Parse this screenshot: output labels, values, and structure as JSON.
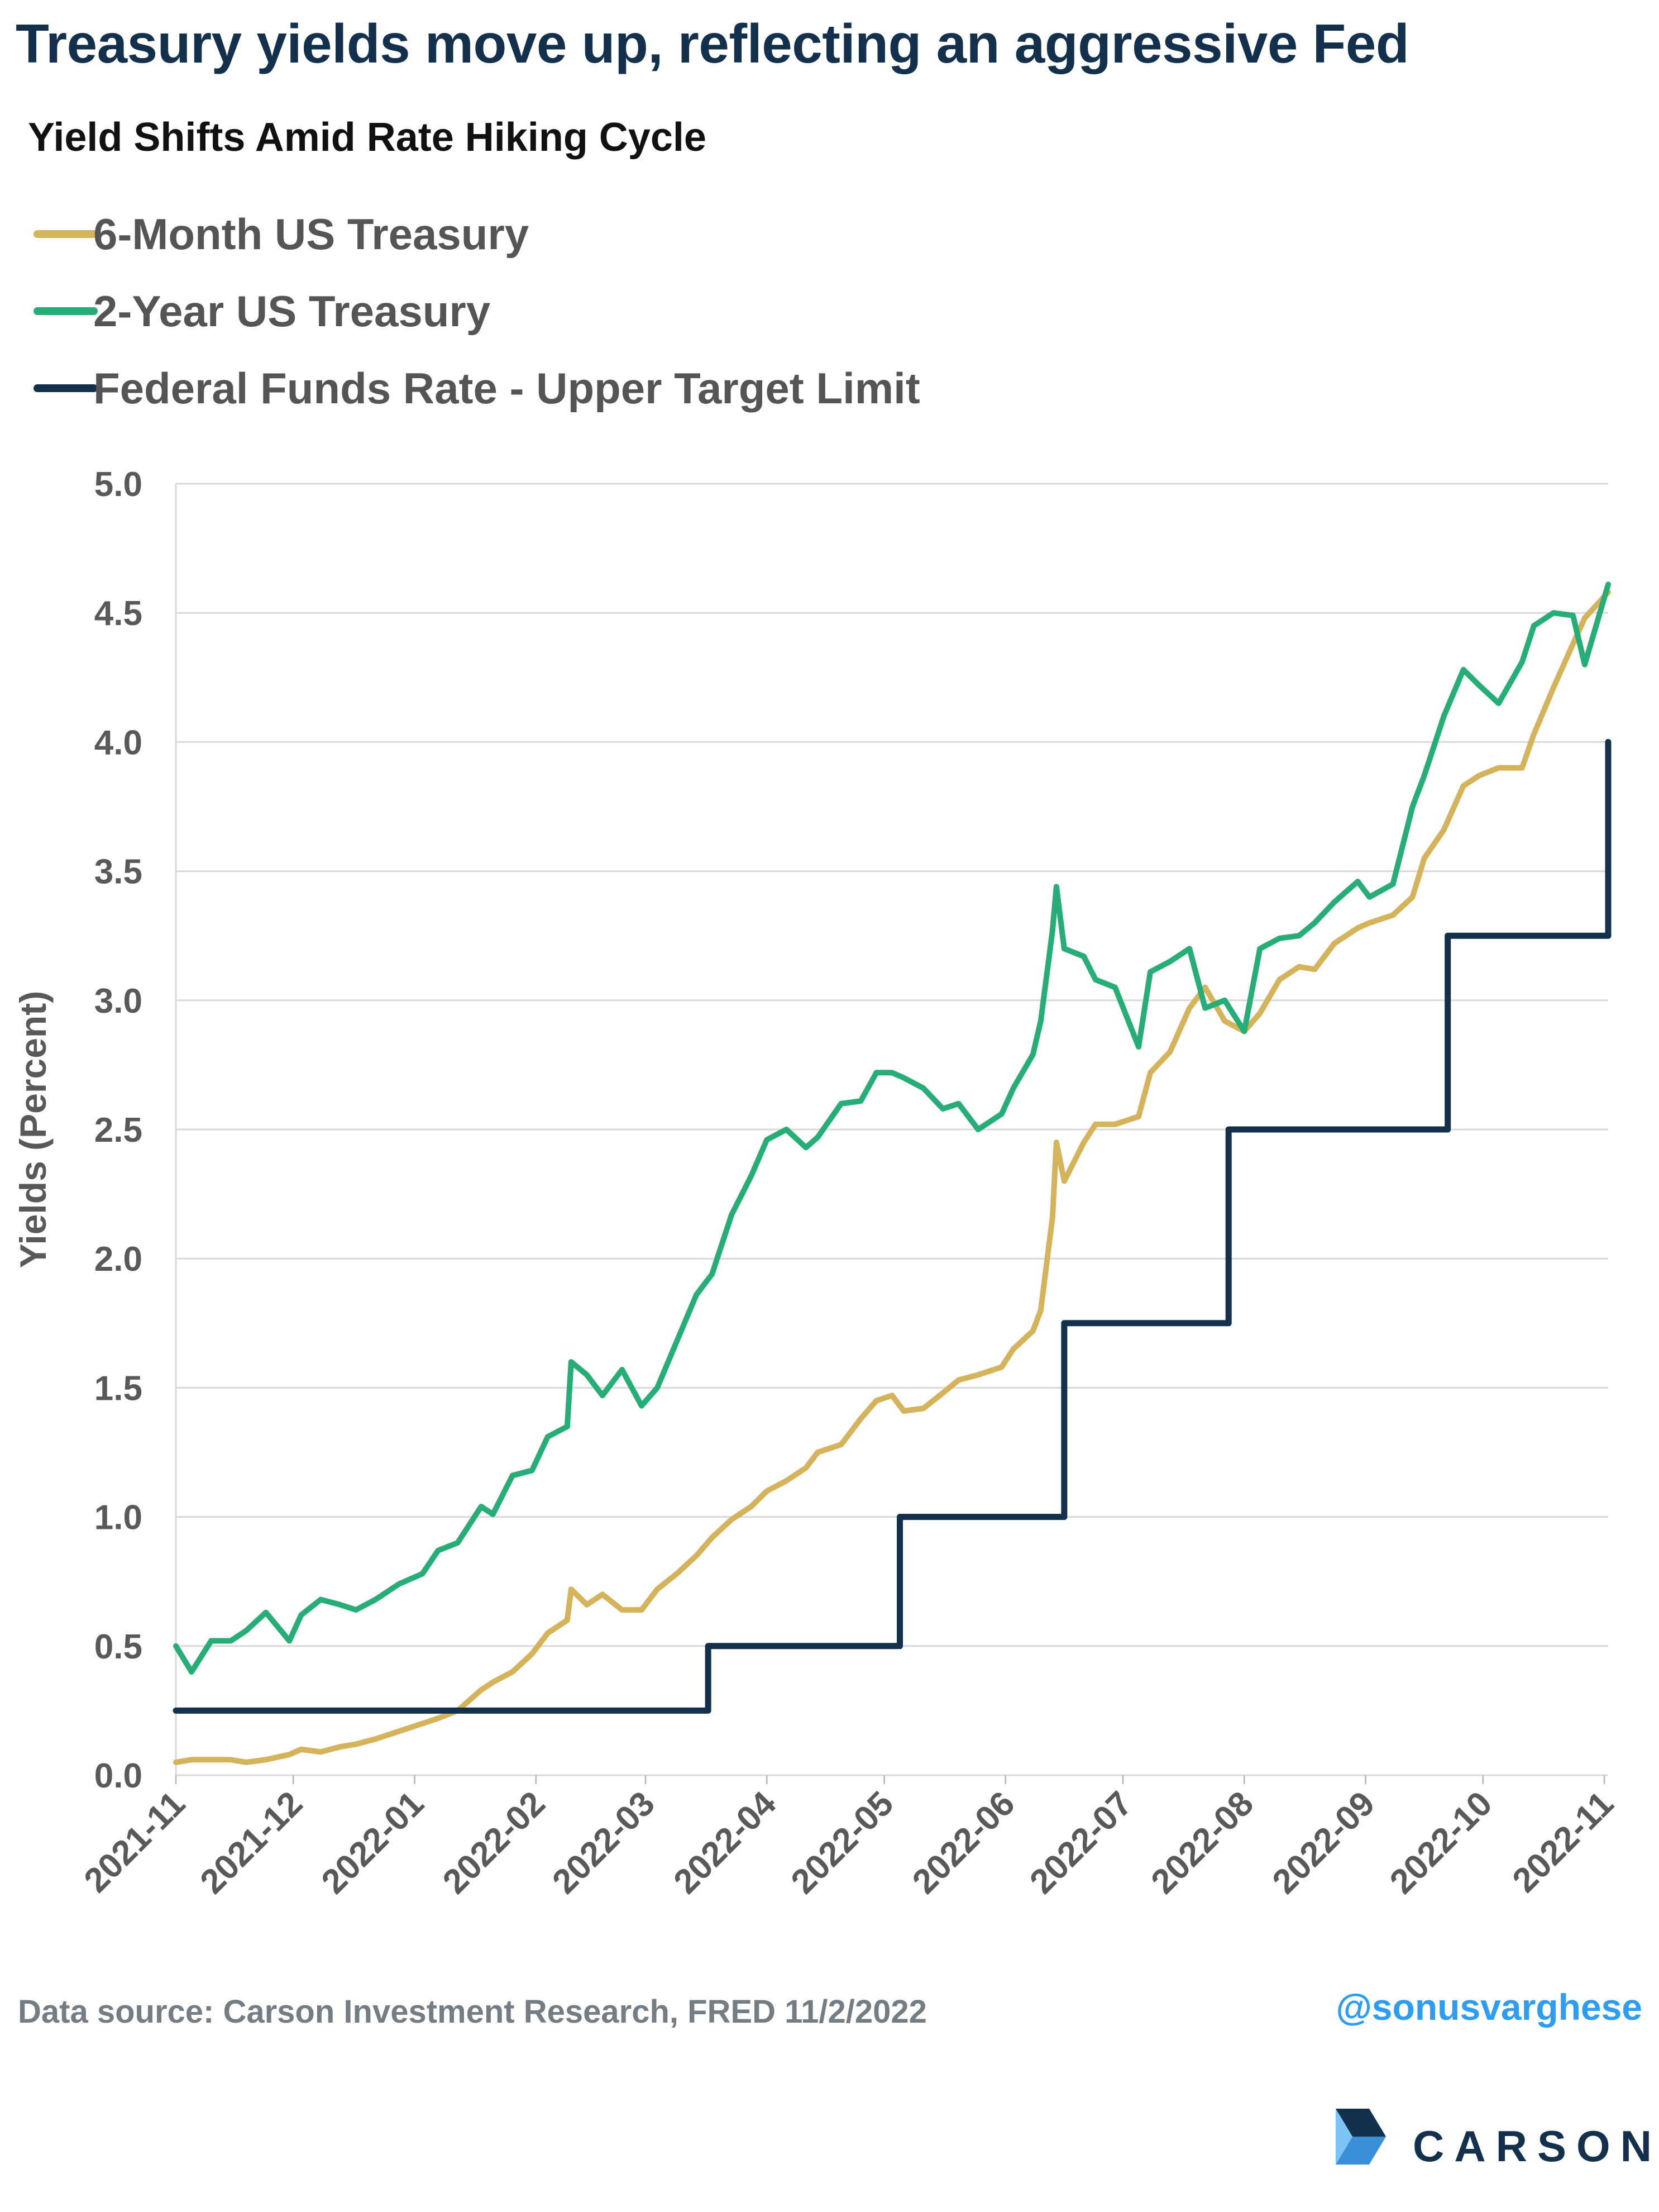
{
  "header": {
    "headline": "Treasury yields move up, reflecting an aggressive Fed"
  },
  "footer": {
    "source": "Data source: Carson Investment Research, FRED   11/2/2022",
    "handle": "@sonusvarghese"
  },
  "logo": {
    "text": "CARSON"
  },
  "colors": {
    "six_month": "#d4b35a",
    "two_year": "#27ad77",
    "fed_funds": "#13304d",
    "grid": "#d9d9d9",
    "tick_text": "#595959"
  },
  "chart_data": {
    "type": "line",
    "title": "Yield Shifts Amid Rate Hiking Cycle",
    "ylabel": "Yields (Percent)",
    "xlabel": "",
    "ylim": [
      0,
      5.0
    ],
    "y_ticks": [
      "0.0",
      "0.5",
      "1.0",
      "1.5",
      "2.0",
      "2.5",
      "3.0",
      "3.5",
      "4.0",
      "4.5",
      "5.0"
    ],
    "x_ticks": [
      "2021-11",
      "2021-12",
      "2022-01",
      "2022-02",
      "2022-03",
      "2022-04",
      "2022-05",
      "2022-06",
      "2022-07",
      "2022-08",
      "2022-09",
      "2022-10",
      "2022-11"
    ],
    "x_range": [
      "2021-11-01",
      "2022-11-02"
    ],
    "grid": "horizontal",
    "legend_position": "top-left",
    "series": [
      {
        "name": "6-Month US Treasury",
        "color": "#d4b35a",
        "x": [
          "2021-11-01",
          "2021-11-05",
          "2021-11-10",
          "2021-11-15",
          "2021-11-19",
          "2021-11-24",
          "2021-11-30",
          "2021-12-03",
          "2021-12-08",
          "2021-12-13",
          "2021-12-17",
          "2021-12-22",
          "2021-12-28",
          "2022-01-03",
          "2022-01-07",
          "2022-01-12",
          "2022-01-18",
          "2022-01-21",
          "2022-01-26",
          "2022-01-31",
          "2022-02-04",
          "2022-02-09",
          "2022-02-10",
          "2022-02-14",
          "2022-02-18",
          "2022-02-23",
          "2022-02-28",
          "2022-03-04",
          "2022-03-09",
          "2022-03-14",
          "2022-03-18",
          "2022-03-23",
          "2022-03-28",
          "2022-04-01",
          "2022-04-06",
          "2022-04-11",
          "2022-04-14",
          "2022-04-20",
          "2022-04-25",
          "2022-04-29",
          "2022-05-03",
          "2022-05-06",
          "2022-05-11",
          "2022-05-16",
          "2022-05-20",
          "2022-05-25",
          "2022-05-31",
          "2022-06-03",
          "2022-06-08",
          "2022-06-10",
          "2022-06-13",
          "2022-06-14",
          "2022-06-16",
          "2022-06-21",
          "2022-06-24",
          "2022-06-29",
          "2022-07-05",
          "2022-07-08",
          "2022-07-13",
          "2022-07-18",
          "2022-07-22",
          "2022-07-27",
          "2022-08-01",
          "2022-08-05",
          "2022-08-10",
          "2022-08-15",
          "2022-08-19",
          "2022-08-24",
          "2022-08-30",
          "2022-09-02",
          "2022-09-08",
          "2022-09-13",
          "2022-09-16",
          "2022-09-21",
          "2022-09-26",
          "2022-09-30",
          "2022-10-05",
          "2022-10-11",
          "2022-10-14",
          "2022-10-19",
          "2022-10-24",
          "2022-10-27",
          "2022-11-02"
        ],
        "y": [
          0.05,
          0.06,
          0.06,
          0.06,
          0.05,
          0.06,
          0.08,
          0.1,
          0.09,
          0.11,
          0.12,
          0.14,
          0.17,
          0.2,
          0.22,
          0.25,
          0.33,
          0.36,
          0.4,
          0.47,
          0.55,
          0.6,
          0.72,
          0.66,
          0.7,
          0.64,
          0.64,
          0.72,
          0.78,
          0.85,
          0.92,
          0.99,
          1.04,
          1.1,
          1.14,
          1.19,
          1.25,
          1.28,
          1.38,
          1.45,
          1.47,
          1.41,
          1.42,
          1.48,
          1.53,
          1.55,
          1.58,
          1.65,
          1.72,
          1.8,
          2.16,
          2.45,
          2.3,
          2.45,
          2.52,
          2.52,
          2.55,
          2.72,
          2.8,
          2.97,
          3.05,
          2.92,
          2.88,
          2.95,
          3.08,
          3.13,
          3.12,
          3.22,
          3.28,
          3.3,
          3.33,
          3.4,
          3.55,
          3.66,
          3.83,
          3.87,
          3.9,
          3.9,
          4.03,
          4.21,
          4.38,
          4.48,
          4.58
        ]
      },
      {
        "name": "2-Year US Treasury",
        "color": "#27ad77",
        "x": [
          "2021-11-01",
          "2021-11-05",
          "2021-11-10",
          "2021-11-15",
          "2021-11-19",
          "2021-11-24",
          "2021-11-30",
          "2021-12-03",
          "2021-12-08",
          "2021-12-13",
          "2021-12-17",
          "2021-12-22",
          "2021-12-28",
          "2022-01-03",
          "2022-01-07",
          "2022-01-12",
          "2022-01-18",
          "2022-01-21",
          "2022-01-26",
          "2022-01-31",
          "2022-02-04",
          "2022-02-09",
          "2022-02-10",
          "2022-02-14",
          "2022-02-18",
          "2022-02-23",
          "2022-02-28",
          "2022-03-04",
          "2022-03-09",
          "2022-03-14",
          "2022-03-18",
          "2022-03-23",
          "2022-03-28",
          "2022-04-01",
          "2022-04-06",
          "2022-04-11",
          "2022-04-14",
          "2022-04-20",
          "2022-04-25",
          "2022-04-29",
          "2022-05-03",
          "2022-05-06",
          "2022-05-11",
          "2022-05-16",
          "2022-05-20",
          "2022-05-25",
          "2022-05-31",
          "2022-06-03",
          "2022-06-08",
          "2022-06-10",
          "2022-06-13",
          "2022-06-14",
          "2022-06-16",
          "2022-06-21",
          "2022-06-24",
          "2022-06-29",
          "2022-07-05",
          "2022-07-08",
          "2022-07-13",
          "2022-07-18",
          "2022-07-22",
          "2022-07-27",
          "2022-08-01",
          "2022-08-05",
          "2022-08-10",
          "2022-08-15",
          "2022-08-19",
          "2022-08-24",
          "2022-08-30",
          "2022-09-02",
          "2022-09-08",
          "2022-09-13",
          "2022-09-16",
          "2022-09-21",
          "2022-09-26",
          "2022-09-30",
          "2022-10-05",
          "2022-10-11",
          "2022-10-14",
          "2022-10-19",
          "2022-10-24",
          "2022-10-27",
          "2022-11-02"
        ],
        "y": [
          0.5,
          0.4,
          0.52,
          0.52,
          0.56,
          0.63,
          0.52,
          0.62,
          0.68,
          0.66,
          0.64,
          0.68,
          0.74,
          0.78,
          0.87,
          0.9,
          1.04,
          1.01,
          1.16,
          1.18,
          1.31,
          1.35,
          1.6,
          1.55,
          1.47,
          1.57,
          1.43,
          1.5,
          1.68,
          1.86,
          1.94,
          2.17,
          2.32,
          2.46,
          2.5,
          2.43,
          2.47,
          2.6,
          2.61,
          2.72,
          2.72,
          2.7,
          2.66,
          2.58,
          2.6,
          2.5,
          2.56,
          2.66,
          2.79,
          2.92,
          3.27,
          3.44,
          3.2,
          3.17,
          3.08,
          3.05,
          2.82,
          3.11,
          3.15,
          3.2,
          2.97,
          3.0,
          2.88,
          3.2,
          3.24,
          3.25,
          3.3,
          3.38,
          3.46,
          3.4,
          3.45,
          3.75,
          3.87,
          4.1,
          4.28,
          4.22,
          4.15,
          4.31,
          4.45,
          4.5,
          4.49,
          4.3,
          4.61
        ]
      },
      {
        "name": "Federal Funds Rate - Upper Target Limit",
        "color": "#13304d",
        "step": true,
        "x": [
          "2021-11-01",
          "2022-03-17",
          "2022-05-05",
          "2022-06-16",
          "2022-07-28",
          "2022-09-22",
          "2022-11-02",
          "2022-11-02"
        ],
        "y": [
          0.25,
          0.5,
          1.0,
          1.75,
          2.5,
          3.25,
          3.25,
          4.0
        ]
      }
    ]
  }
}
